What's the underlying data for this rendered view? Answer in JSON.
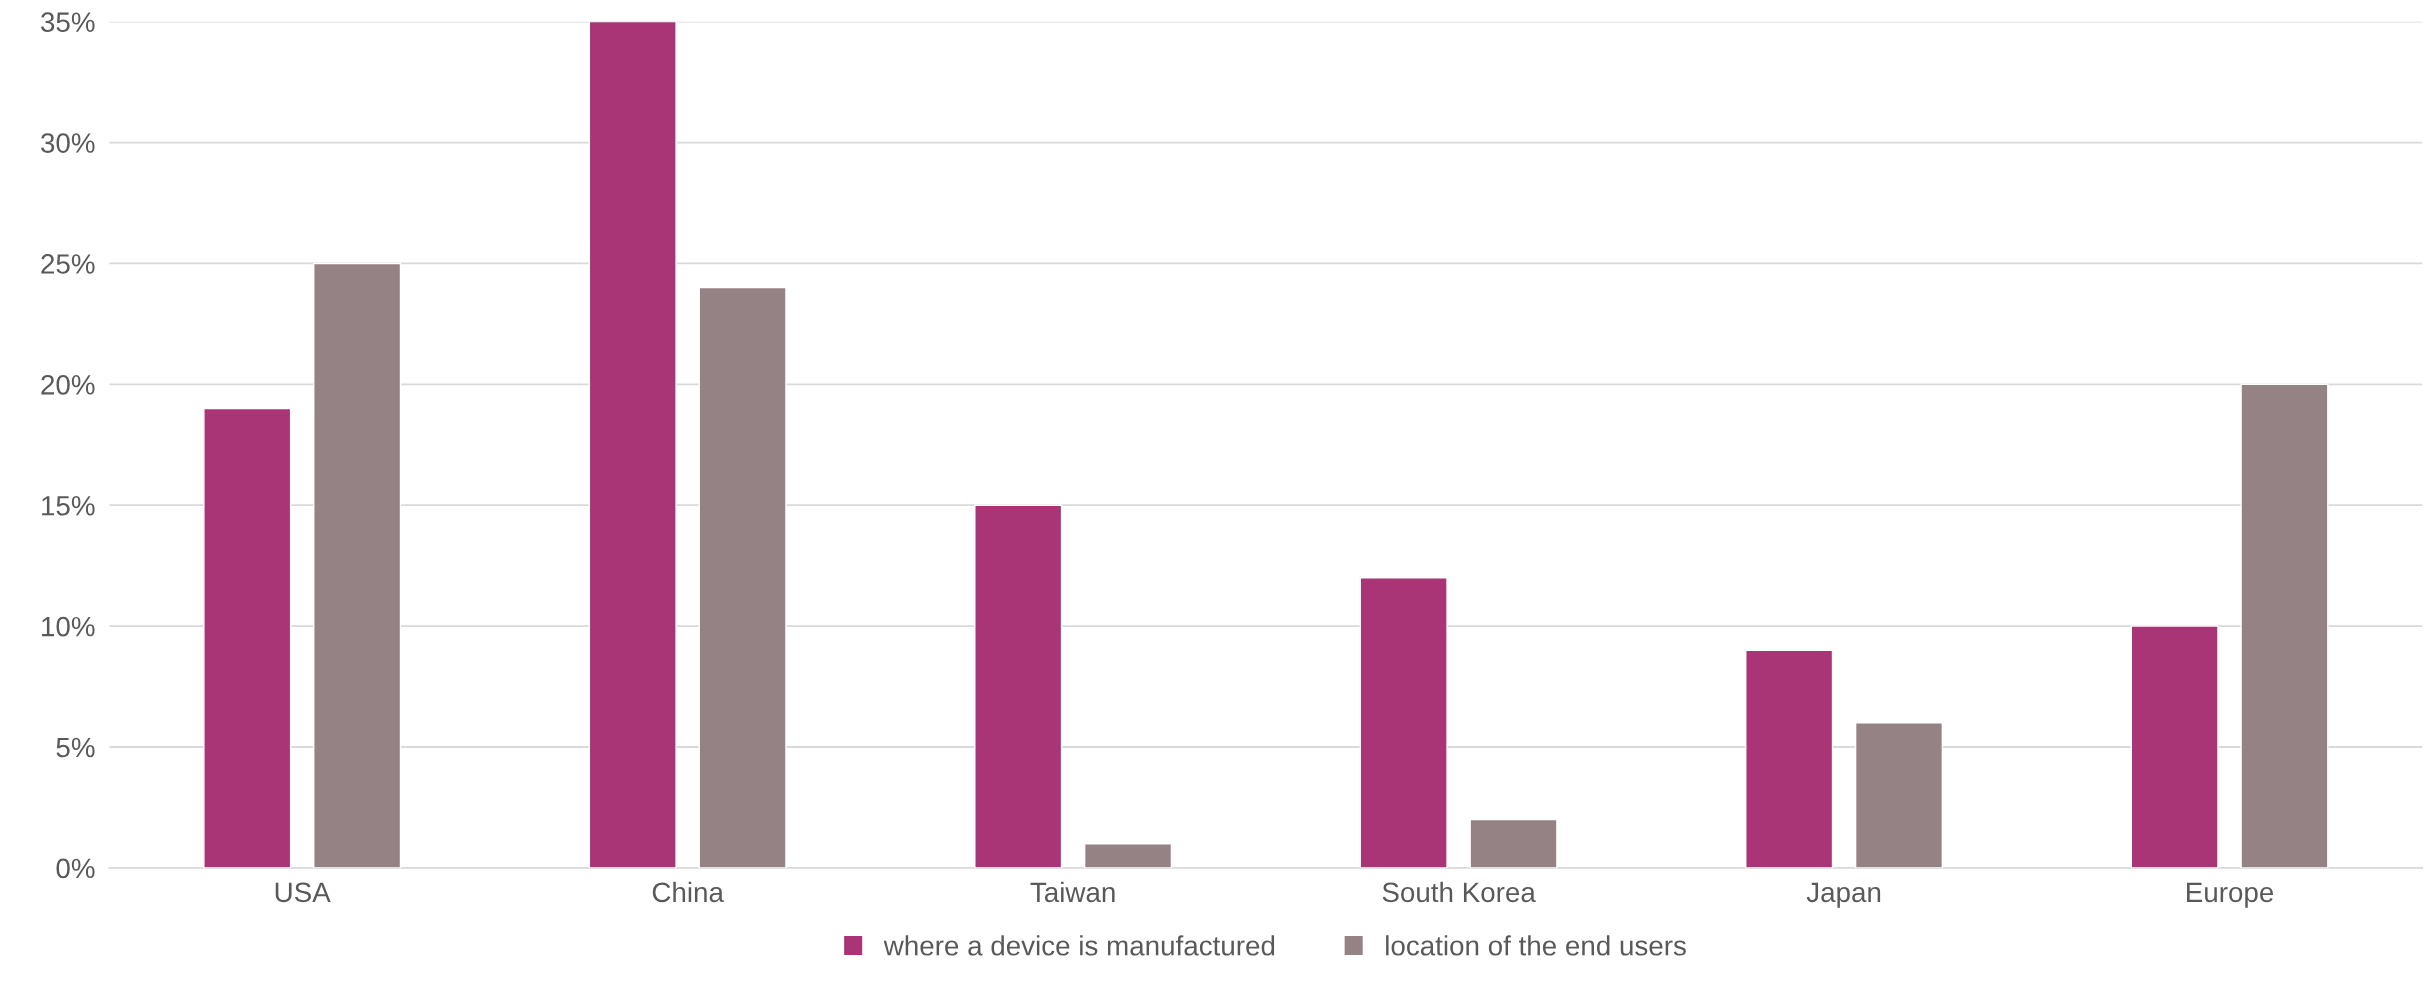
{
  "chart_data": {
    "type": "bar",
    "categories": [
      "USA",
      "China",
      "Taiwan",
      "South Korea",
      "Japan",
      "Europe"
    ],
    "series": [
      {
        "name": "where a device is manufactured",
        "color": "#a93476",
        "values": [
          19,
          35,
          15,
          12,
          9,
          10
        ]
      },
      {
        "name": "location of the end users",
        "color": "#948284",
        "values": [
          25,
          24,
          1,
          2,
          6,
          20
        ]
      }
    ],
    "ylim": [
      0,
      35
    ],
    "yticks": [
      {
        "value": 0,
        "label": "0%"
      },
      {
        "value": 5,
        "label": "5%"
      },
      {
        "value": 10,
        "label": "10%"
      },
      {
        "value": 15,
        "label": "15%"
      },
      {
        "value": 20,
        "label": "20%"
      },
      {
        "value": 25,
        "label": "25%"
      },
      {
        "value": 30,
        "label": "30%"
      },
      {
        "value": 35,
        "label": "35%"
      }
    ],
    "grid": "y",
    "legend": "bottom"
  }
}
